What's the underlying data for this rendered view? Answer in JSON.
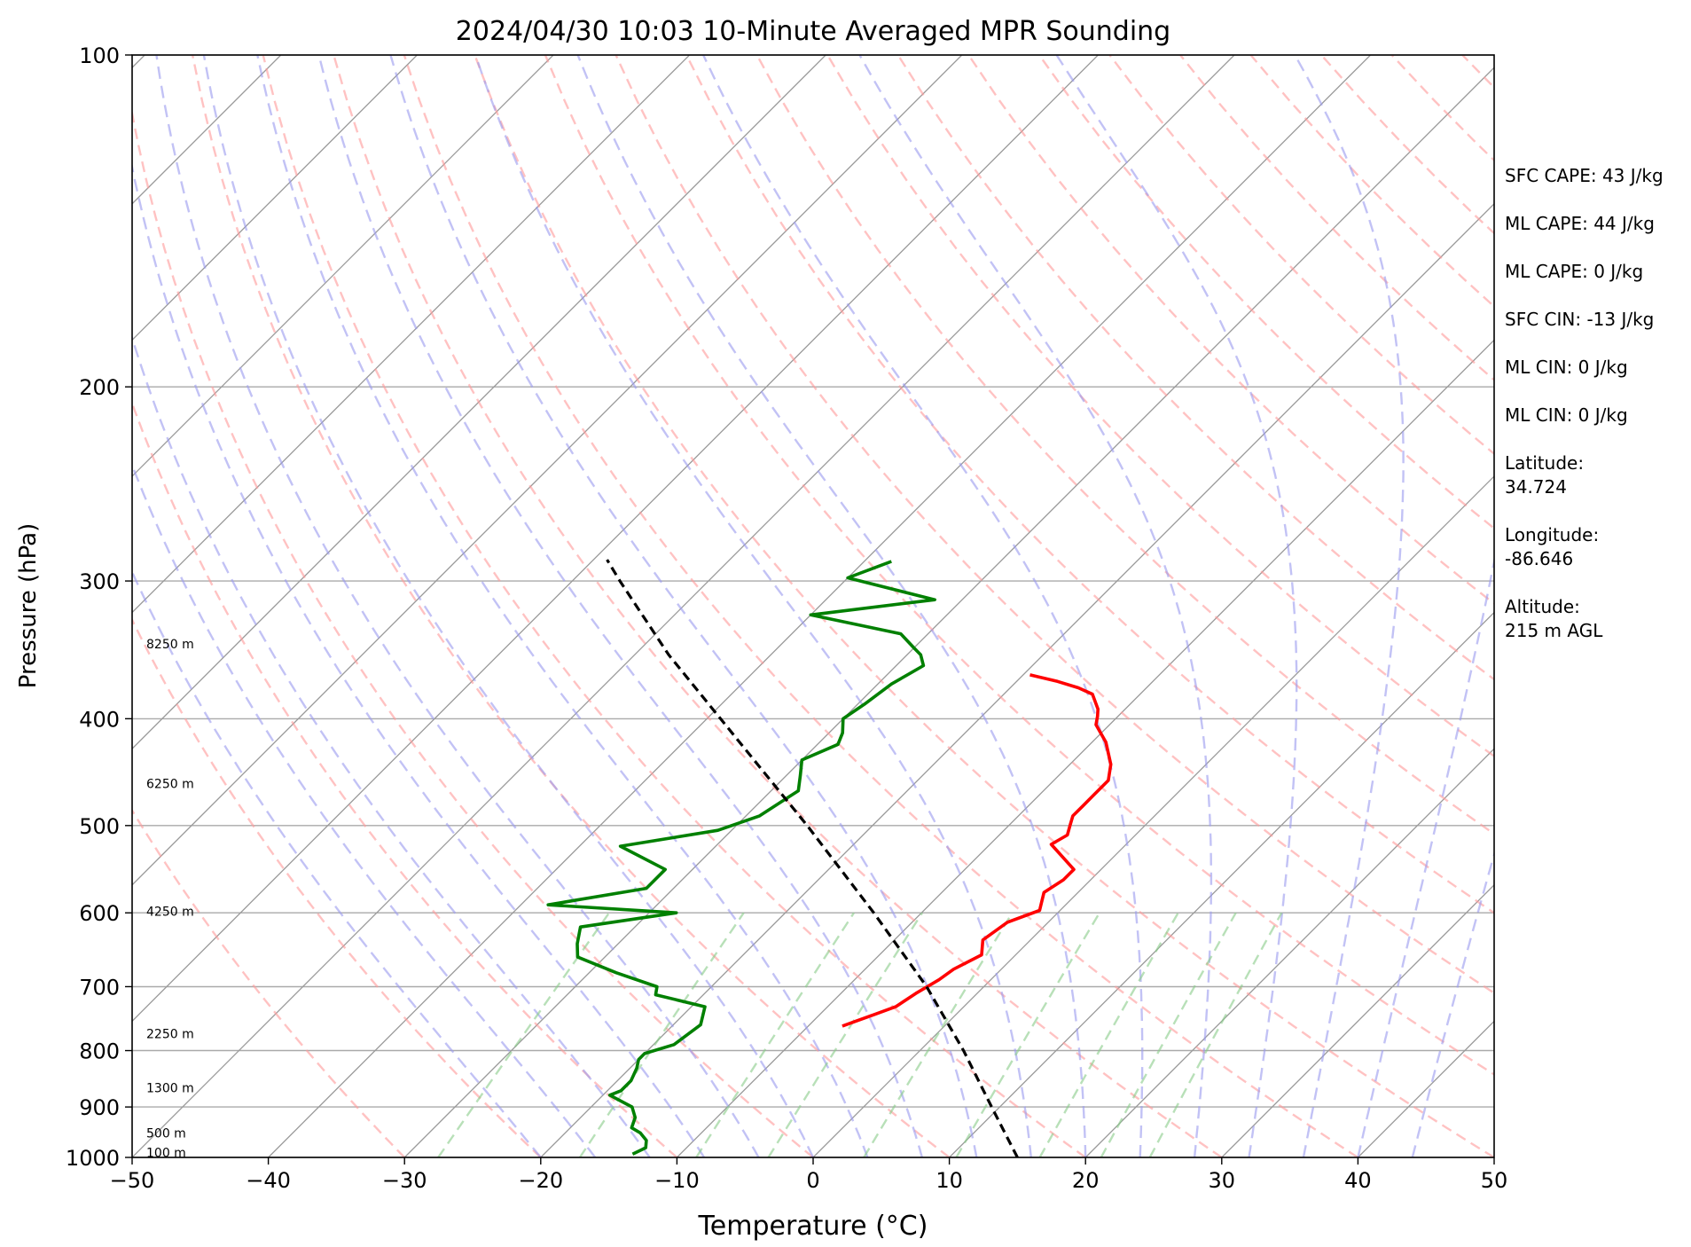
{
  "chart_data": {
    "type": "line",
    "title": "2024/04/30 10:03 10-Minute Averaged MPR Sounding",
    "xlabel": "Temperature (°C)",
    "ylabel": "Pressure (hPa)",
    "xlim": [
      -50,
      50
    ],
    "ylim": [
      1000,
      100
    ],
    "y_scale": "log",
    "x_ticks": [
      "−50",
      "−40",
      "−30",
      "−20",
      "−10",
      "0",
      "10",
      "20",
      "30",
      "40",
      "50"
    ],
    "y_ticks": [
      "1000",
      "900",
      "800",
      "700",
      "600",
      "500",
      "400",
      "300",
      "200",
      "100"
    ],
    "grid": true,
    "height_labels": [
      {
        "text": "100 m",
        "pressure": 990
      },
      {
        "text": "500 m",
        "pressure": 950
      },
      {
        "text": "1300 m",
        "pressure": 865
      },
      {
        "text": "2250 m",
        "pressure": 772
      },
      {
        "text": "4250 m",
        "pressure": 598
      },
      {
        "text": "6250 m",
        "pressure": 458
      },
      {
        "text": "8250 m",
        "pressure": 342
      }
    ],
    "series": [
      {
        "color": "#ff0000",
        "pressure": [
          365,
          370,
          375,
          380,
          392,
          398,
          405,
          420,
          440,
          455,
          470,
          480,
          490,
          500,
          510,
          520,
          548,
          560,
          575,
          597,
          612,
          635,
          655,
          675,
          690,
          710,
          730,
          742,
          754,
          760
        ],
        "temperature": [
          -19.5,
          -17,
          -15,
          -13.5,
          -12,
          -11.5,
          -11,
          -9,
          -7,
          -6,
          -6,
          -6,
          -6,
          -5.5,
          -5,
          -5.5,
          -2,
          -2,
          -2.5,
          -1.5,
          -3,
          -3.5,
          -2.5,
          -3.5,
          -3.8,
          -4.5,
          -5,
          -6,
          -7,
          -7.5
        ]
      },
      {
        "color": "#008000",
        "pressure": [
          288,
          298,
          312,
          322,
          335,
          345,
          350,
          358,
          372,
          388,
          400,
          412,
          422,
          436,
          450,
          465,
          490,
          505,
          522,
          548,
          570,
          590,
          600,
          618,
          640,
          658,
          680,
          700,
          712,
          730,
          758,
          790,
          805,
          815,
          830,
          852,
          870,
          878,
          900,
          920,
          940,
          950,
          965,
          980,
          993
        ],
        "temperature": [
          -38,
          -40,
          -32,
          -40,
          -32,
          -30,
          -29,
          -28,
          -29,
          -29.5,
          -30,
          -29,
          -28.5,
          -30,
          -29,
          -28,
          -29,
          -31,
          -37,
          -32,
          -32,
          -38,
          -28,
          -34,
          -33,
          -32,
          -28,
          -24,
          -23.5,
          -19,
          -18,
          -18.5,
          -20,
          -20,
          -19.5,
          -19,
          -19,
          -19.5,
          -17,
          -16,
          -15.5,
          -14.5,
          -13.5,
          -13,
          -13.5
        ]
      },
      {
        "color": "#000000",
        "dashed": true,
        "pressure": [
          1000,
          900,
          800,
          700,
          600,
          500,
          400,
          350,
          300,
          287
        ],
        "temperature": [
          15,
          9.4,
          3.2,
          -4.2,
          -13.5,
          -24.8,
          -39.0,
          -47.5,
          -56.5,
          -59
        ]
      }
    ]
  },
  "sidebar": {
    "sfc_cape": "SFC CAPE: 43 J/kg",
    "ml_cape": "ML CAPE: 44 J/kg",
    "ml_cape2": "ML CAPE: 0 J/kg",
    "sfc_cin": "SFC CIN: -13 J/kg",
    "ml_cin": "ML CIN: 0 J/kg",
    "ml_cin2": "ML CIN: 0 J/kg",
    "latitude_label": "Latitude:",
    "latitude_value": "34.724",
    "longitude_label": "Longitude:",
    "longitude_value": "-86.646",
    "altitude_label": "Altitude:",
    "altitude_value": "215 m AGL"
  }
}
